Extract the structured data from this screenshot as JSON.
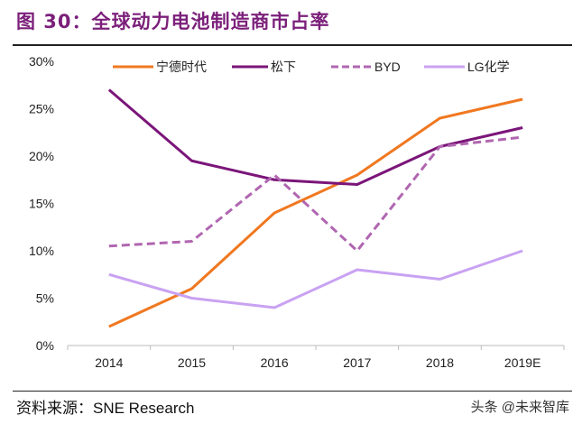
{
  "title": "图 30：全球动力电池制造商市占率",
  "source": "资料来源：SNE Research",
  "watermark": "头条 @未来智库",
  "chart_data": {
    "type": "line",
    "categories": [
      "2014",
      "2015",
      "2016",
      "2017",
      "2018",
      "2019E"
    ],
    "ylim": [
      0,
      30
    ],
    "yticks": [
      "0%",
      "5%",
      "10%",
      "15%",
      "20%",
      "25%",
      "30%"
    ],
    "grid": false,
    "legend": "top",
    "series": [
      {
        "name": "宁德时代",
        "color": "#f07820",
        "dash": false,
        "values": [
          2,
          6,
          14,
          18,
          24,
          26
        ]
      },
      {
        "name": "松下",
        "color": "#7b1579",
        "dash": false,
        "values": [
          27,
          19.5,
          17.5,
          17,
          21,
          23
        ]
      },
      {
        "name": "BYD",
        "color": "#b066b0",
        "dash": true,
        "values": [
          10.5,
          11,
          18,
          10,
          21,
          22
        ]
      },
      {
        "name": "LG化学",
        "color": "#c9a2f2",
        "dash": false,
        "values": [
          7.5,
          5,
          4,
          8,
          7,
          10
        ]
      }
    ]
  }
}
